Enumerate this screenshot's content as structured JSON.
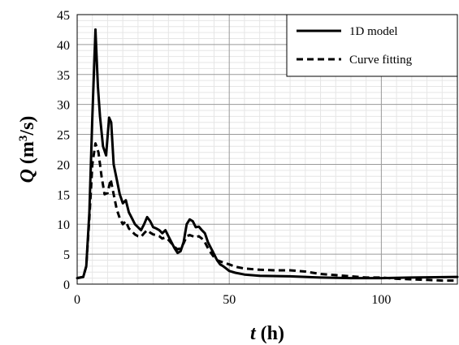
{
  "chart_data": {
    "type": "line",
    "xlabel": {
      "var": "t",
      "unit": " (h)"
    },
    "ylabel": {
      "var": "Q",
      "unit_pre": " (m",
      "unit_sup": "3",
      "unit_post": "/s)"
    },
    "xlim": [
      0,
      125
    ],
    "ylim": [
      0,
      45
    ],
    "x_ticks": [
      0,
      50,
      100
    ],
    "y_ticks": [
      0,
      5,
      10,
      15,
      20,
      25,
      30,
      35,
      40,
      45
    ],
    "grid": {
      "major": true,
      "minor": true
    },
    "legend_position": "top-right",
    "series": [
      {
        "name": "1D model",
        "style": "solid",
        "color": "#000000",
        "points": [
          [
            0,
            1
          ],
          [
            2,
            1.2
          ],
          [
            3,
            3
          ],
          [
            4,
            12
          ],
          [
            5,
            28
          ],
          [
            6,
            42.5
          ],
          [
            6.8,
            33
          ],
          [
            7.5,
            28
          ],
          [
            8.5,
            23
          ],
          [
            9.5,
            21.5
          ],
          [
            10.5,
            27.8
          ],
          [
            11.2,
            27
          ],
          [
            12,
            20
          ],
          [
            13,
            17.5
          ],
          [
            14,
            15
          ],
          [
            15,
            13.5
          ],
          [
            16,
            14
          ],
          [
            17,
            12
          ],
          [
            18,
            11
          ],
          [
            19,
            10
          ],
          [
            20,
            9.5
          ],
          [
            21,
            9
          ],
          [
            22,
            10
          ],
          [
            23,
            11.2
          ],
          [
            24,
            10.5
          ],
          [
            25,
            9.5
          ],
          [
            26,
            9.3
          ],
          [
            27,
            9
          ],
          [
            28,
            8.5
          ],
          [
            29,
            9
          ],
          [
            30,
            8
          ],
          [
            31,
            7
          ],
          [
            32,
            6
          ],
          [
            33,
            5.2
          ],
          [
            34,
            5.5
          ],
          [
            35,
            7
          ],
          [
            36,
            10
          ],
          [
            37,
            10.8
          ],
          [
            38,
            10.5
          ],
          [
            39,
            9.5
          ],
          [
            40,
            9.6
          ],
          [
            41,
            9
          ],
          [
            42,
            8.5
          ],
          [
            43,
            7
          ],
          [
            44,
            6
          ],
          [
            45,
            5
          ],
          [
            46,
            4
          ],
          [
            47,
            3.3
          ],
          [
            48,
            3
          ],
          [
            49,
            2.6
          ],
          [
            50,
            2.2
          ],
          [
            52,
            1.9
          ],
          [
            55,
            1.6
          ],
          [
            60,
            1.4
          ],
          [
            70,
            1.3
          ],
          [
            80,
            1.1
          ],
          [
            90,
            1
          ],
          [
            100,
            1
          ],
          [
            110,
            1.1
          ],
          [
            125,
            1.2
          ]
        ]
      },
      {
        "name": "Curve fitting",
        "style": "dashed",
        "color": "#000000",
        "points": [
          [
            0,
            1
          ],
          [
            2,
            1.2
          ],
          [
            3,
            3
          ],
          [
            4,
            11
          ],
          [
            5,
            20
          ],
          [
            6,
            23.5
          ],
          [
            7,
            22
          ],
          [
            8,
            18
          ],
          [
            9,
            15
          ],
          [
            10,
            15.2
          ],
          [
            11,
            17.5
          ],
          [
            12,
            15
          ],
          [
            13,
            12.5
          ],
          [
            14,
            11
          ],
          [
            15,
            10
          ],
          [
            16,
            10.5
          ],
          [
            17,
            9.3
          ],
          [
            18,
            8.8
          ],
          [
            19,
            8.3
          ],
          [
            20,
            8
          ],
          [
            21,
            7.9
          ],
          [
            22,
            8.5
          ],
          [
            23,
            9
          ],
          [
            24,
            8.6
          ],
          [
            25,
            8.3
          ],
          [
            26,
            8.2
          ],
          [
            27,
            8
          ],
          [
            28,
            7.6
          ],
          [
            29,
            7.8
          ],
          [
            30,
            7.4
          ],
          [
            31,
            6.8
          ],
          [
            32,
            6.2
          ],
          [
            33,
            5.8
          ],
          [
            34,
            6
          ],
          [
            35,
            6.8
          ],
          [
            36,
            8
          ],
          [
            37,
            8.2
          ],
          [
            38,
            8
          ],
          [
            39,
            7.8
          ],
          [
            40,
            8
          ],
          [
            41,
            7.6
          ],
          [
            42,
            7
          ],
          [
            43,
            6
          ],
          [
            44,
            5.2
          ],
          [
            45,
            4.5
          ],
          [
            46,
            4
          ],
          [
            48,
            3.6
          ],
          [
            50,
            3.3
          ],
          [
            52,
            2.9
          ],
          [
            55,
            2.6
          ],
          [
            60,
            2.4
          ],
          [
            65,
            2.3
          ],
          [
            70,
            2.3
          ],
          [
            75,
            2.1
          ],
          [
            80,
            1.7
          ],
          [
            85,
            1.5
          ],
          [
            90,
            1.3
          ],
          [
            95,
            1.1
          ],
          [
            100,
            1.1
          ],
          [
            105,
            0.9
          ],
          [
            110,
            0.8
          ],
          [
            115,
            0.7
          ],
          [
            120,
            0.6
          ],
          [
            125,
            0.6
          ]
        ]
      }
    ]
  }
}
